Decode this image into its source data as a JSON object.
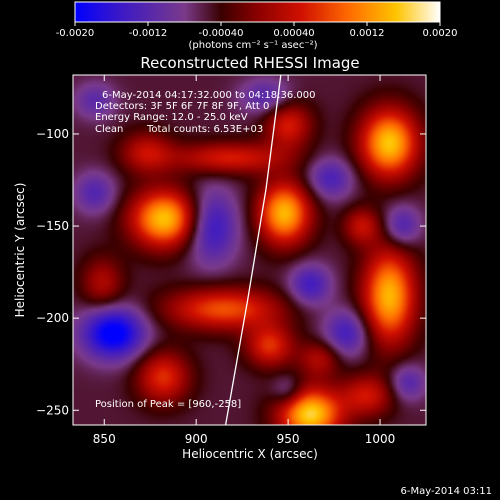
{
  "chart_data": {
    "type": "heatmap",
    "title": "Reconstructed RHESSI Image",
    "xlabel": "Heliocentric X (arcsec)",
    "ylabel": "Heliocentric Y (arcsec)",
    "xlim": [
      833,
      1025
    ],
    "ylim": [
      -258,
      -68
    ],
    "xticks": [
      850,
      900,
      950,
      1000
    ],
    "yticks": [
      -100,
      -150,
      -200,
      -250
    ],
    "colorbar": {
      "range": [
        -0.002,
        0.002
      ],
      "ticks": [
        "-0.0020",
        "-0.0012",
        "-0.00040",
        "0.00040",
        "0.0012",
        "0.0020"
      ],
      "label": "(photons cm⁻² s⁻¹ asec⁻²)",
      "colormap": [
        "#0000ff",
        "#5a1fa8",
        "#8a4a8a",
        "#3a0000",
        "#8b0000",
        "#e62000",
        "#ff7a00",
        "#ffd000",
        "#ffffff"
      ]
    },
    "annotations": [
      "6-May-2014 04:17:32.000 to 04:18:36.000",
      "Detectors: 3F 5F 6F 7F 8F 9F, Att 0",
      "Energy Range: 12.0 - 25.0 keV",
      "Clean",
      "Total counts: 6.53E+03"
    ],
    "peak_label": "Position of Peak = [960,-258]",
    "limb_points": [
      [
        946,
        -68
      ],
      [
        938,
        -130
      ],
      [
        928,
        -190
      ],
      [
        916,
        -258
      ]
    ],
    "sources": [
      {
        "x": 883,
        "y": -146,
        "sx": 13,
        "sy": 11,
        "v": 0.0021
      },
      {
        "x": 948,
        "y": -143,
        "sx": 10,
        "sy": 12,
        "v": 0.002
      },
      {
        "x": 1005,
        "y": -105,
        "sx": 11,
        "sy": 13,
        "v": 0.0021
      },
      {
        "x": 1005,
        "y": -188,
        "sx": 10,
        "sy": 18,
        "v": 0.002
      },
      {
        "x": 962,
        "y": -252,
        "sx": 12,
        "sy": 10,
        "v": 0.0022
      },
      {
        "x": 915,
        "y": -195,
        "sx": 22,
        "sy": 8,
        "v": 0.0014
      },
      {
        "x": 940,
        "y": -215,
        "sx": 9,
        "sy": 8,
        "v": 0.0012
      },
      {
        "x": 882,
        "y": -232,
        "sx": 10,
        "sy": 10,
        "v": 0.0012
      },
      {
        "x": 950,
        "y": -95,
        "sx": 9,
        "sy": 9,
        "v": 0.0011
      },
      {
        "x": 918,
        "y": -113,
        "sx": 22,
        "sy": 6,
        "v": 0.0011
      },
      {
        "x": 873,
        "y": -110,
        "sx": 10,
        "sy": 8,
        "v": 0.0009
      },
      {
        "x": 993,
        "y": -242,
        "sx": 10,
        "sy": 8,
        "v": 0.001
      },
      {
        "x": 990,
        "y": -150,
        "sx": 7,
        "sy": 7,
        "v": 0.0009
      },
      {
        "x": 849,
        "y": -181,
        "sx": 8,
        "sy": 10,
        "v": 0.0008
      },
      {
        "x": 967,
        "y": -222,
        "sx": 8,
        "sy": 7,
        "v": 0.0008
      },
      {
        "x": 855,
        "y": -208,
        "sx": 12,
        "sy": 10,
        "v": -0.0016
      },
      {
        "x": 908,
        "y": -150,
        "sx": 10,
        "sy": 14,
        "v": -0.0011
      },
      {
        "x": 982,
        "y": -208,
        "sx": 9,
        "sy": 9,
        "v": -0.0009
      },
      {
        "x": 962,
        "y": -182,
        "sx": 8,
        "sy": 8,
        "v": -0.0009
      },
      {
        "x": 973,
        "y": -124,
        "sx": 9,
        "sy": 8,
        "v": -0.0008
      },
      {
        "x": 1012,
        "y": -150,
        "sx": 7,
        "sy": 8,
        "v": -0.0008
      },
      {
        "x": 845,
        "y": -132,
        "sx": 8,
        "sy": 8,
        "v": -0.0007
      },
      {
        "x": 1015,
        "y": -235,
        "sx": 7,
        "sy": 7,
        "v": -0.0007
      },
      {
        "x": 938,
        "y": -80,
        "sx": 10,
        "sy": 7,
        "v": -0.0007
      },
      {
        "x": 845,
        "y": -82,
        "sx": 8,
        "sy": 7,
        "v": -0.0006
      },
      {
        "x": 950,
        "y": -240,
        "sx": 6,
        "sy": 6,
        "v": -0.0006
      }
    ]
  },
  "footer_timestamp": "6-May-2014 03:11"
}
